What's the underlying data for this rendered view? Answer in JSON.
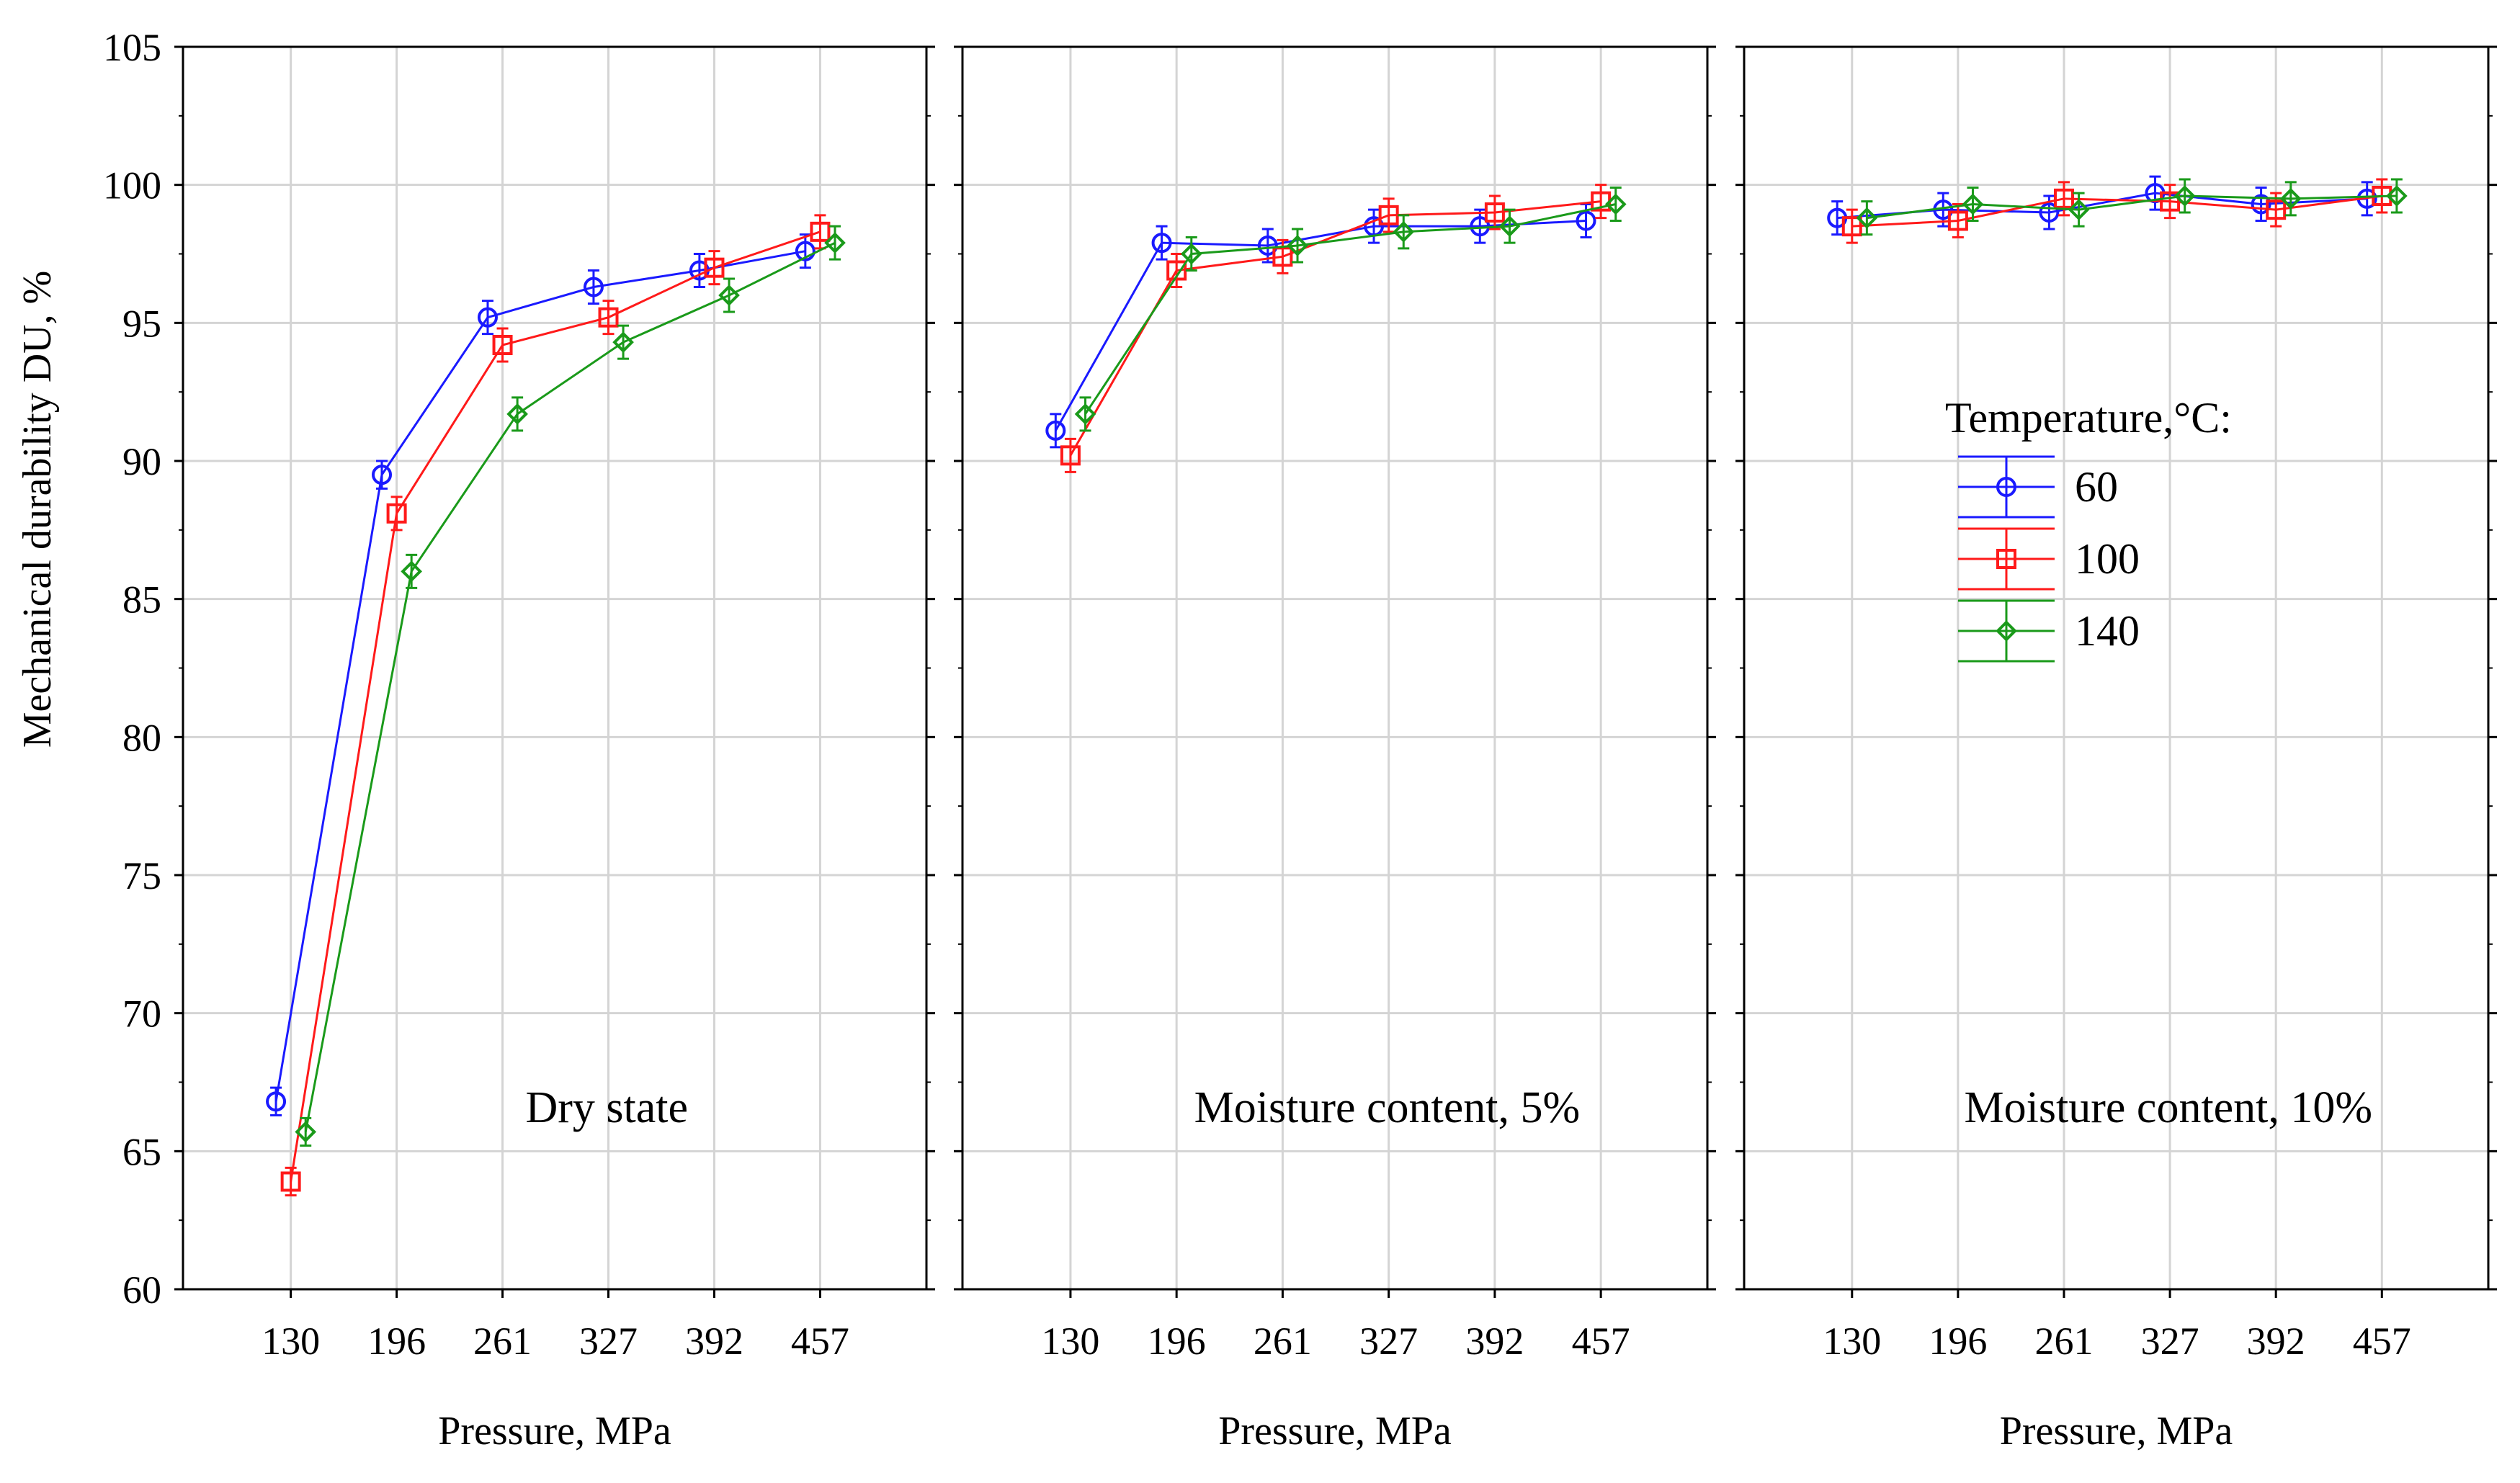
{
  "figure": {
    "ylabel": "Mechanical durability DU, %",
    "legend": {
      "title": "Temperature,°C:",
      "entries": [
        {
          "label": "60",
          "color": "#1a1aff",
          "marker": "circle"
        },
        {
          "label": "100",
          "color": "#ff1a1a",
          "marker": "square"
        },
        {
          "label": "140",
          "color": "#1a9a1a",
          "marker": "diamond"
        }
      ]
    }
  },
  "chart_data": [
    {
      "type": "line",
      "panel_label": "Dry state",
      "xlabel": "Pressure, MPa",
      "ylabel": "Mechanical durability DU, %",
      "categories": [
        "130",
        "196",
        "261",
        "327",
        "392",
        "457"
      ],
      "ylim": [
        60,
        105
      ],
      "yticks": [
        60,
        65,
        70,
        75,
        80,
        85,
        90,
        95,
        100,
        105
      ],
      "grid": true,
      "series": [
        {
          "name": "60",
          "color": "#1a1aff",
          "marker": "circle",
          "values": [
            66.8,
            89.5,
            95.2,
            96.3,
            96.9,
            97.6
          ],
          "err": [
            0.5,
            0.5,
            0.6,
            0.6,
            0.6,
            0.6
          ]
        },
        {
          "name": "100",
          "color": "#ff1a1a",
          "marker": "square",
          "values": [
            63.9,
            88.1,
            94.2,
            95.2,
            97.0,
            98.3
          ],
          "err": [
            0.5,
            0.6,
            0.6,
            0.6,
            0.6,
            0.6
          ]
        },
        {
          "name": "140",
          "color": "#1a9a1a",
          "marker": "diamond",
          "values": [
            65.7,
            86.0,
            91.7,
            94.3,
            96.0,
            97.9
          ],
          "err": [
            0.5,
            0.6,
            0.6,
            0.6,
            0.6,
            0.6
          ]
        }
      ]
    },
    {
      "type": "line",
      "panel_label": "Moisture content, 5%",
      "xlabel": "Pressure, MPa",
      "categories": [
        "130",
        "196",
        "261",
        "327",
        "392",
        "457"
      ],
      "ylim": [
        60,
        105
      ],
      "yticks": [
        60,
        65,
        70,
        75,
        80,
        85,
        90,
        95,
        100,
        105
      ],
      "grid": true,
      "series": [
        {
          "name": "60",
          "color": "#1a1aff",
          "marker": "circle",
          "values": [
            91.1,
            97.9,
            97.8,
            98.5,
            98.5,
            98.7
          ],
          "err": [
            0.6,
            0.6,
            0.6,
            0.6,
            0.6,
            0.6
          ]
        },
        {
          "name": "100",
          "color": "#ff1a1a",
          "marker": "square",
          "values": [
            90.2,
            96.9,
            97.4,
            98.9,
            99.0,
            99.4
          ],
          "err": [
            0.6,
            0.6,
            0.6,
            0.6,
            0.6,
            0.6
          ]
        },
        {
          "name": "140",
          "color": "#1a9a1a",
          "marker": "diamond",
          "values": [
            91.7,
            97.5,
            97.8,
            98.3,
            98.5,
            99.3
          ],
          "err": [
            0.6,
            0.6,
            0.6,
            0.6,
            0.6,
            0.6
          ]
        }
      ]
    },
    {
      "type": "line",
      "panel_label": "Moisture content, 10%",
      "xlabel": "Pressure, MPa",
      "categories": [
        "130",
        "196",
        "261",
        "327",
        "392",
        "457"
      ],
      "ylim": [
        60,
        105
      ],
      "yticks": [
        60,
        65,
        70,
        75,
        80,
        85,
        90,
        95,
        100,
        105
      ],
      "grid": true,
      "legend_position": "center-left",
      "series": [
        {
          "name": "60",
          "color": "#1a1aff",
          "marker": "circle",
          "values": [
            98.8,
            99.1,
            99.0,
            99.7,
            99.3,
            99.5
          ],
          "err": [
            0.6,
            0.6,
            0.6,
            0.6,
            0.6,
            0.6
          ]
        },
        {
          "name": "100",
          "color": "#ff1a1a",
          "marker": "square",
          "values": [
            98.5,
            98.7,
            99.5,
            99.4,
            99.1,
            99.6
          ],
          "err": [
            0.6,
            0.6,
            0.6,
            0.6,
            0.6,
            0.6
          ]
        },
        {
          "name": "140",
          "color": "#1a9a1a",
          "marker": "diamond",
          "values": [
            98.8,
            99.3,
            99.1,
            99.6,
            99.5,
            99.6
          ],
          "err": [
            0.6,
            0.6,
            0.6,
            0.6,
            0.6,
            0.6
          ]
        }
      ]
    }
  ]
}
